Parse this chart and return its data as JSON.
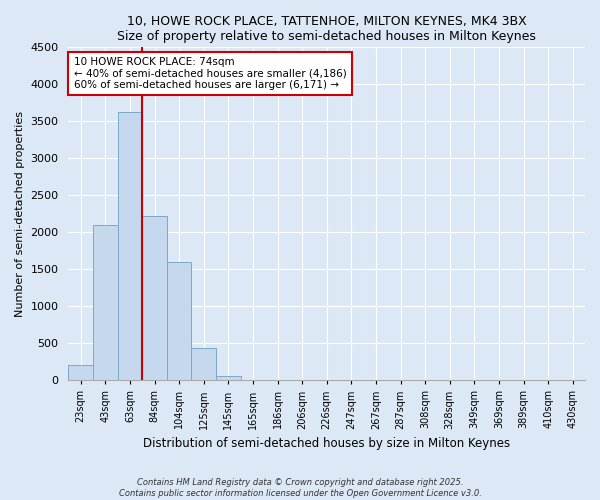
{
  "title": "10, HOWE ROCK PLACE, TATTENHOE, MILTON KEYNES, MK4 3BX",
  "subtitle": "Size of property relative to semi-detached houses in Milton Keynes",
  "xlabel": "Distribution of semi-detached houses by size in Milton Keynes",
  "ylabel": "Number of semi-detached properties",
  "bar_color": "#c5d8ed",
  "bar_edge_color": "#7aaac8",
  "background_color": "#dce8f5",
  "grid_color": "#ffffff",
  "categories": [
    "23sqm",
    "43sqm",
    "63sqm",
    "84sqm",
    "104sqm",
    "125sqm",
    "145sqm",
    "165sqm",
    "186sqm",
    "206sqm",
    "226sqm",
    "247sqm",
    "267sqm",
    "287sqm",
    "308sqm",
    "328sqm",
    "349sqm",
    "369sqm",
    "389sqm",
    "410sqm",
    "430sqm"
  ],
  "values": [
    210,
    2100,
    3620,
    2220,
    1600,
    430,
    60,
    10,
    5,
    3,
    2,
    1,
    1,
    0,
    0,
    0,
    0,
    0,
    0,
    0,
    0
  ],
  "property_bin_index": 2.5,
  "annotation_title": "10 HOWE ROCK PLACE: 74sqm",
  "annotation_line1": "← 40% of semi-detached houses are smaller (4,186)",
  "annotation_line2": "60% of semi-detached houses are larger (6,171) →",
  "vline_color": "#cc0000",
  "annotation_border_color": "#cc0000",
  "ylim": [
    0,
    4500
  ],
  "footnote1": "Contains HM Land Registry data © Crown copyright and database right 2025.",
  "footnote2": "Contains public sector information licensed under the Open Government Licence v3.0."
}
